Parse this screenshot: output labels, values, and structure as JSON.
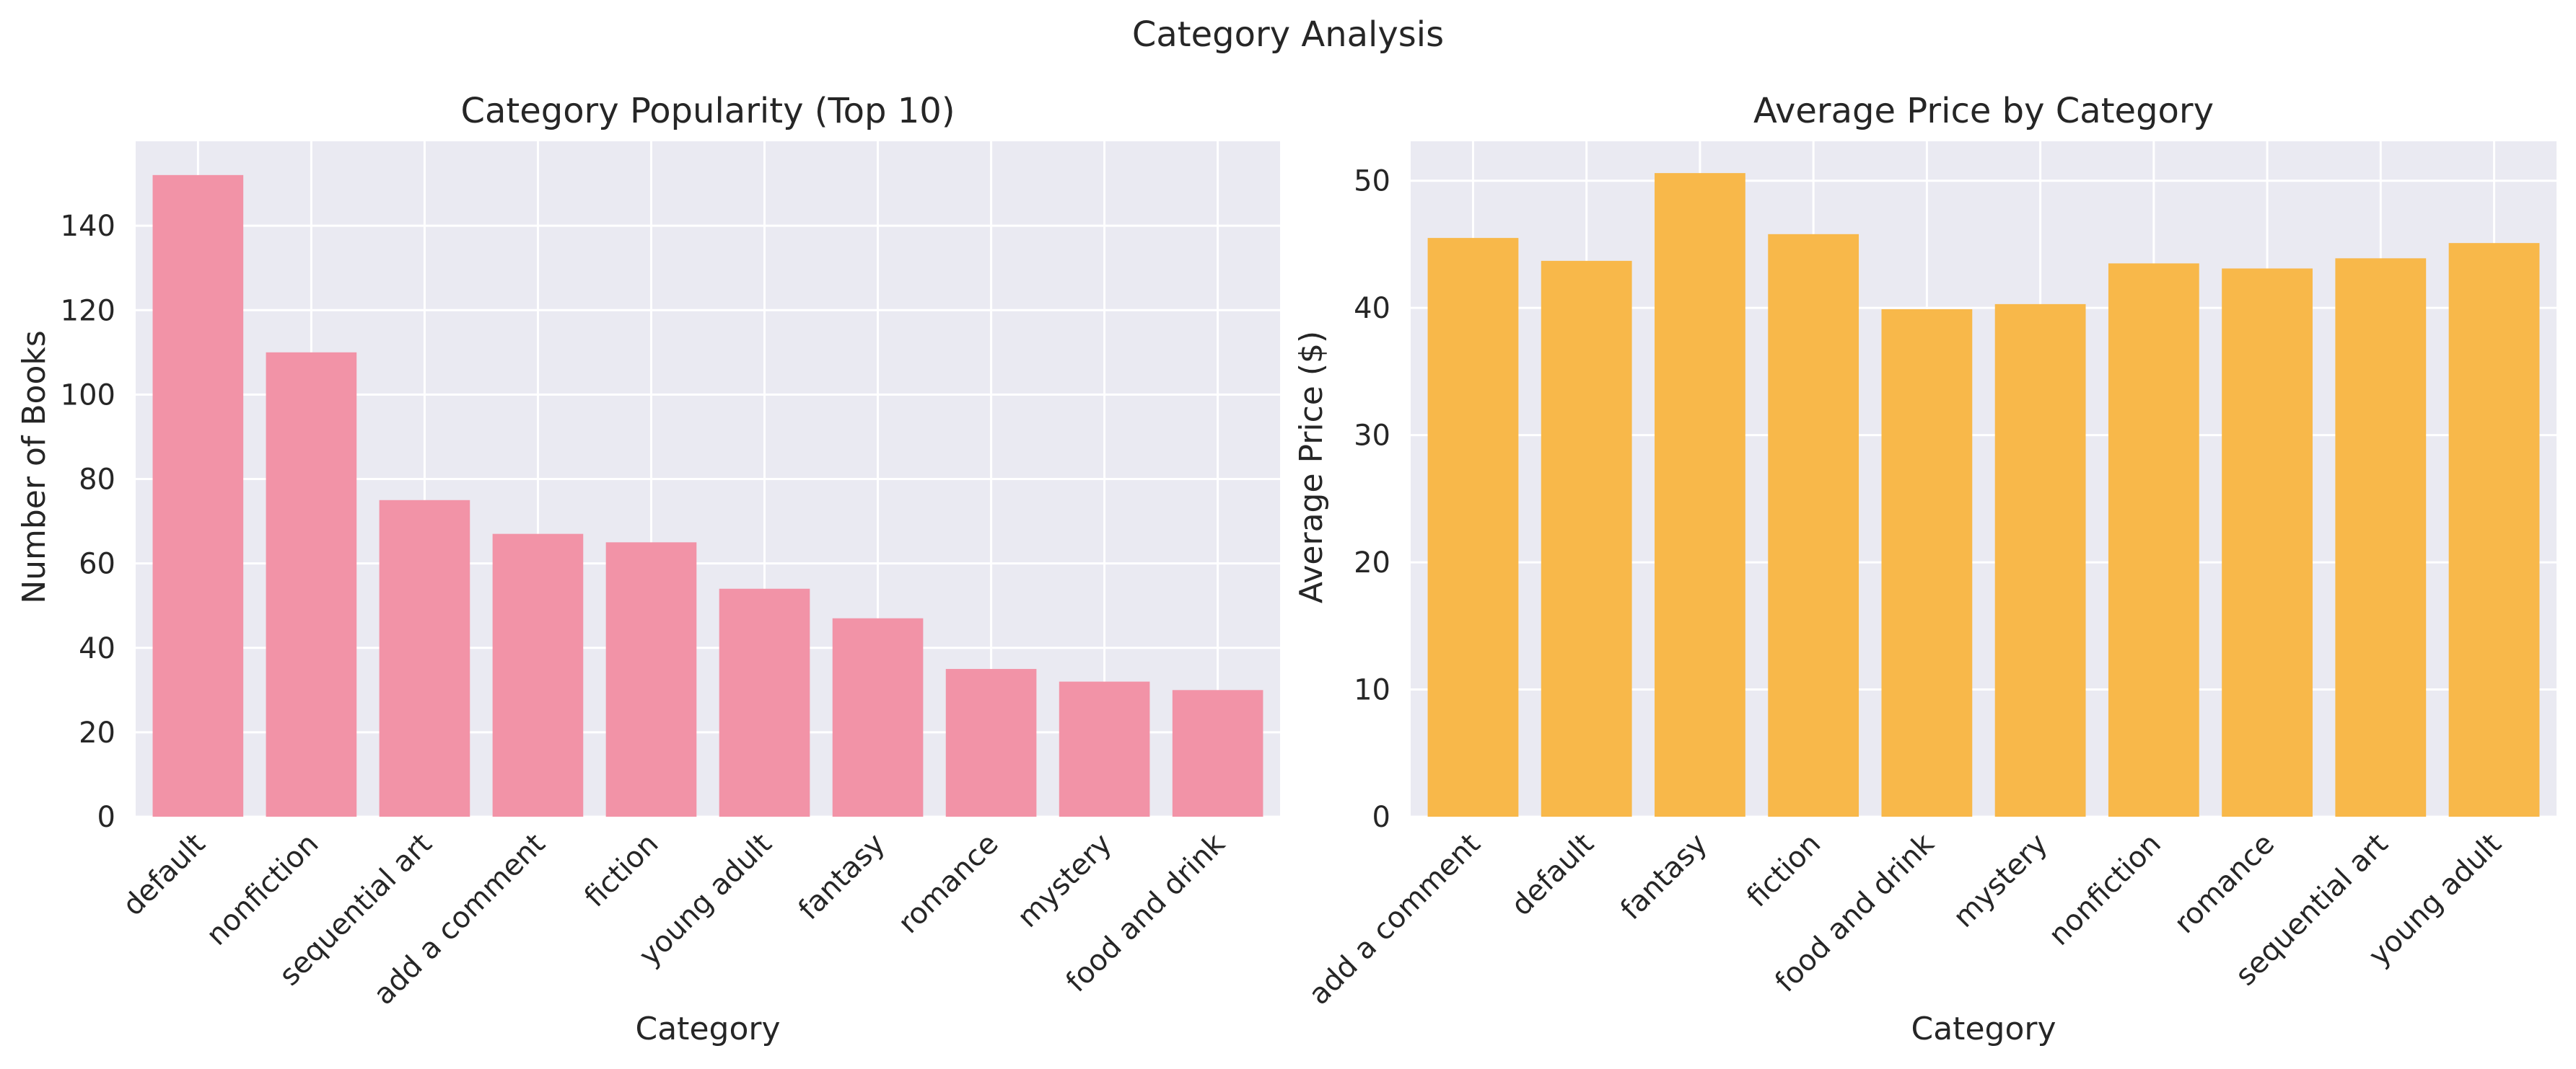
{
  "suptitle": "Category Analysis",
  "chart_data": [
    {
      "type": "bar",
      "title": "Category Popularity (Top 10)",
      "xlabel": "Category",
      "ylabel": "Number of Books",
      "categories": [
        "default",
        "nonfiction",
        "sequential art",
        "add a comment",
        "fiction",
        "young adult",
        "fantasy",
        "romance",
        "mystery",
        "food and drink"
      ],
      "values": [
        152,
        110,
        75,
        67,
        65,
        54,
        47,
        35,
        32,
        30
      ],
      "ylim": [
        0,
        160
      ],
      "yticks": [
        0,
        20,
        40,
        60,
        80,
        100,
        120,
        140
      ],
      "color": "#f293a7",
      "grid": true
    },
    {
      "type": "bar",
      "title": "Average Price by Category",
      "xlabel": "Category",
      "ylabel": "Average Price ($)",
      "categories": [
        "add a comment",
        "default",
        "fantasy",
        "fiction",
        "food and drink",
        "mystery",
        "nonfiction",
        "romance",
        "sequential art",
        "young adult"
      ],
      "values": [
        45.5,
        43.7,
        50.6,
        45.8,
        39.9,
        40.3,
        43.5,
        43.1,
        43.9,
        45.1
      ],
      "ylim": [
        0,
        53.1
      ],
      "yticks": [
        0,
        10,
        20,
        30,
        40,
        50
      ],
      "color": "#f8b84a",
      "grid": true
    }
  ]
}
